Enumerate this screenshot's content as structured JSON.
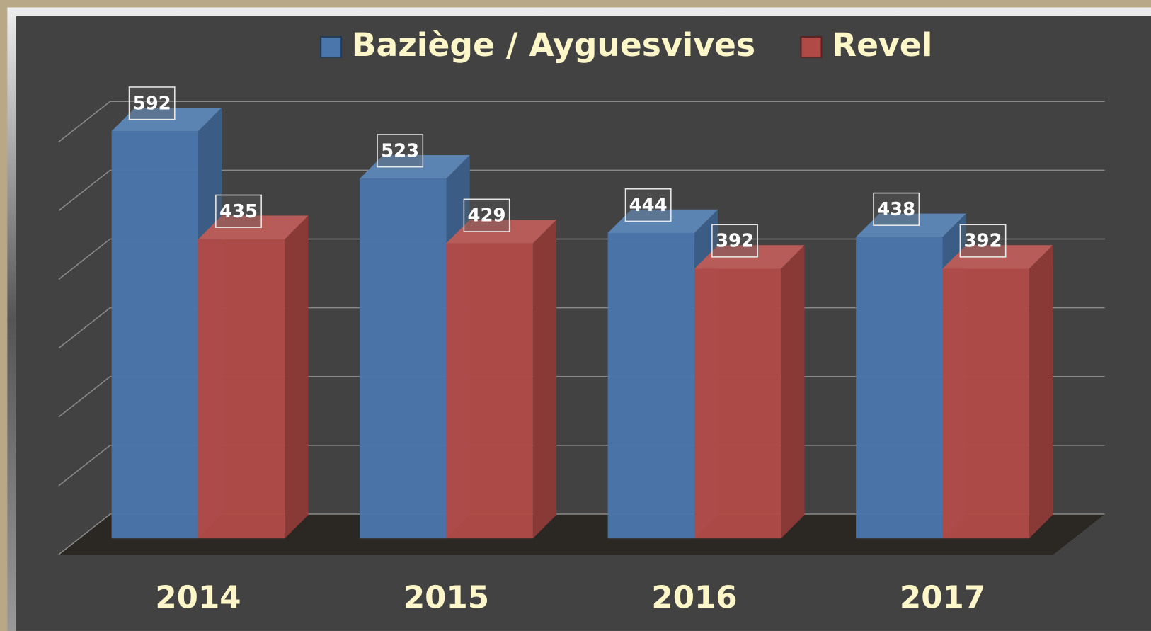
{
  "chart_data": {
    "type": "bar",
    "categories": [
      "2014",
      "2015",
      "2016",
      "2017"
    ],
    "series": [
      {
        "name": "Baziège / Ayguesvives",
        "color": "#4a76ab",
        "values": [
          592,
          523,
          444,
          438
        ]
      },
      {
        "name": "Revel",
        "color": "#b04a47",
        "values": [
          435,
          429,
          392,
          392
        ]
      }
    ],
    "ylim": [
      0,
      600
    ],
    "yticks": [
      0,
      100,
      200,
      300,
      400,
      500,
      600
    ],
    "grid": true,
    "legend": "top",
    "data_labels": true
  }
}
